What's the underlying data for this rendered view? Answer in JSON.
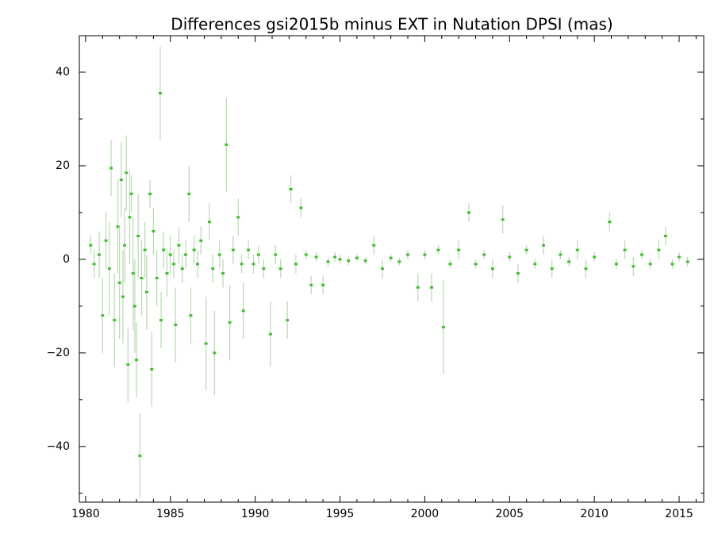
{
  "chart_data": {
    "type": "scatter",
    "title": "Differences gsi2015b minus EXT in Nutation DPSI (mas)",
    "xlim": [
      1979.63,
      2016.45
    ],
    "ylim": [
      -51.9,
      47.8
    ],
    "xticks": [
      1980,
      1985,
      1990,
      1995,
      2000,
      2005,
      2010,
      2015
    ],
    "x_minor_ticks": [
      1981,
      1982,
      1983,
      1984,
      1986,
      1987,
      1988,
      1989,
      1991,
      1992,
      1993,
      1994,
      1996,
      1997,
      1998,
      1999,
      2001,
      2002,
      2003,
      2004,
      2006,
      2007,
      2008,
      2009,
      2011,
      2012,
      2013,
      2014,
      2016
    ],
    "yticks": [
      -40,
      -20,
      0,
      20,
      40
    ],
    "y_minor_ticks": [
      -50,
      -30,
      -10,
      10,
      30
    ],
    "error_color": "#b8d9b0",
    "series": [
      {
        "color": "#44bb33",
        "x": [
          1980.3,
          1980.5,
          1980.8,
          1981.0,
          1981.2,
          1981.4,
          1981.5,
          1981.7,
          1981.9,
          1982.0,
          1982.1,
          1982.2,
          1982.3,
          1982.4,
          1982.5,
          1982.6,
          1982.7,
          1982.8,
          1982.9,
          1983.0,
          1983.1,
          1983.2,
          1983.3,
          1983.5,
          1983.6,
          1983.8,
          1983.9,
          1984.0,
          1984.2,
          1984.4,
          1984.45,
          1984.6,
          1984.8,
          1985.0,
          1985.2,
          1985.3,
          1985.5,
          1985.7,
          1985.9,
          1986.1,
          1986.2,
          1986.4,
          1986.6,
          1986.8,
          1987.1,
          1987.3,
          1987.5,
          1987.6,
          1987.9,
          1988.1,
          1988.3,
          1988.5,
          1988.7,
          1989.0,
          1989.2,
          1989.3,
          1989.6,
          1989.9,
          1990.2,
          1990.5,
          1990.9,
          1991.2,
          1991.5,
          1991.9,
          1992.1,
          1992.4,
          1992.7,
          1993.0,
          1993.3,
          1993.6,
          1994.0,
          1994.3,
          1994.7,
          1995.0,
          1995.5,
          1996.0,
          1996.5,
          1997.0,
          1997.5,
          1998.0,
          1998.5,
          1999.0,
          1999.6,
          2000.0,
          2000.4,
          2000.8,
          2001.1,
          2001.5,
          2002.0,
          2002.6,
          2003.0,
          2003.5,
          2004.0,
          2004.6,
          2005.0,
          2005.5,
          2006.0,
          2006.5,
          2007.0,
          2007.5,
          2008.0,
          2008.5,
          2009.0,
          2009.5,
          2010.0,
          2010.9,
          2011.3,
          2011.8,
          2012.3,
          2012.8,
          2013.3,
          2013.8,
          2014.2,
          2014.6,
          2015.0,
          2015.5
        ],
        "values": [
          3,
          -1,
          1,
          -12,
          4,
          -2,
          19.5,
          -13,
          7,
          -5,
          17,
          -8,
          3,
          18.5,
          -22.5,
          9,
          14,
          -3,
          -10,
          -21.5,
          5,
          -42,
          -4,
          2,
          -7,
          14,
          -23.5,
          6,
          -4,
          35.5,
          -13,
          2,
          -3,
          1,
          -1,
          -14,
          3,
          -2,
          1,
          14,
          -12,
          2,
          -1,
          4,
          -18,
          8,
          -2,
          -20,
          1,
          -3,
          24.5,
          -13.5,
          2,
          9,
          -1,
          -11,
          2,
          -1,
          1,
          -2,
          -16,
          1,
          -2,
          -13,
          15,
          -1,
          11,
          1,
          -5.5,
          0.5,
          -5.5,
          -0.5,
          0.5,
          0,
          -0.3,
          0.3,
          -0.3,
          3,
          -2,
          0.3,
          -0.5,
          1,
          -6,
          1,
          -6,
          2,
          -14.5,
          -1,
          2,
          10,
          -1,
          1,
          -2,
          8.5,
          0.5,
          -3,
          2,
          -1,
          3,
          -2,
          1,
          -0.5,
          2,
          -2,
          0.5,
          8,
          -1,
          2,
          -1.5,
          1,
          -1,
          2,
          5,
          -1,
          0.5,
          -0.5
        ],
        "errors": [
          2,
          3,
          5,
          8,
          6,
          10,
          6,
          10,
          10,
          12,
          8,
          10,
          8,
          8,
          8,
          10,
          4,
          12,
          10,
          8,
          9,
          9,
          8,
          6,
          8,
          3,
          8,
          5,
          6,
          10,
          6,
          4,
          5,
          4,
          3,
          8,
          4,
          3,
          3,
          6,
          6,
          3,
          3,
          3,
          10,
          4,
          3,
          9,
          3,
          3,
          10,
          8,
          3,
          4,
          2,
          6,
          2,
          2,
          2,
          2,
          7,
          2,
          2,
          4,
          3,
          2,
          2,
          1,
          2,
          1,
          2,
          1,
          1,
          1,
          1,
          0.8,
          0.8,
          2,
          2,
          0.8,
          0.8,
          1,
          3,
          1,
          3,
          1,
          10,
          1,
          2,
          2,
          1,
          1,
          2,
          3,
          1,
          2,
          1,
          1,
          2,
          2,
          1,
          1,
          2,
          2,
          1,
          2,
          1,
          2,
          2,
          1,
          1,
          2,
          2,
          1,
          1,
          1
        ]
      }
    ]
  }
}
